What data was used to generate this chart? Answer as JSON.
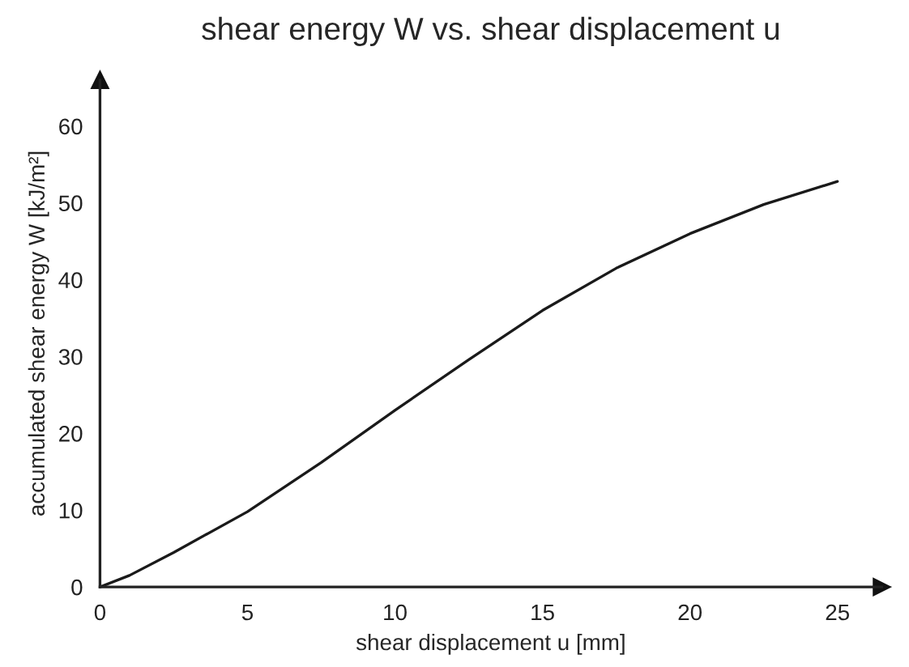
{
  "chart_data": {
    "type": "line",
    "title": "shear energy W vs. shear displacement u",
    "xlabel": "shear displacement u [mm]",
    "ylabel": "accumulated shear energy W [kJ/m²]",
    "series": [
      {
        "color": "#1a1a1a",
        "x": [
          0,
          1,
          2.5,
          5,
          7.5,
          10,
          12.5,
          15,
          17.5,
          20,
          22.5,
          25
        ],
        "values": [
          0,
          1.5,
          4.5,
          9.8,
          16.2,
          23,
          29.6,
          36,
          41.5,
          46,
          49.8,
          52.8
        ]
      }
    ],
    "xlim": [
      0,
      26.5
    ],
    "ylim": [
      0,
      66
    ],
    "xticks": [
      0,
      5,
      10,
      15,
      20,
      25
    ],
    "yticks": [
      0,
      10,
      20,
      30,
      40,
      50,
      60
    ],
    "grid": false,
    "legend": false,
    "marker": "none",
    "line_style": "solid"
  }
}
